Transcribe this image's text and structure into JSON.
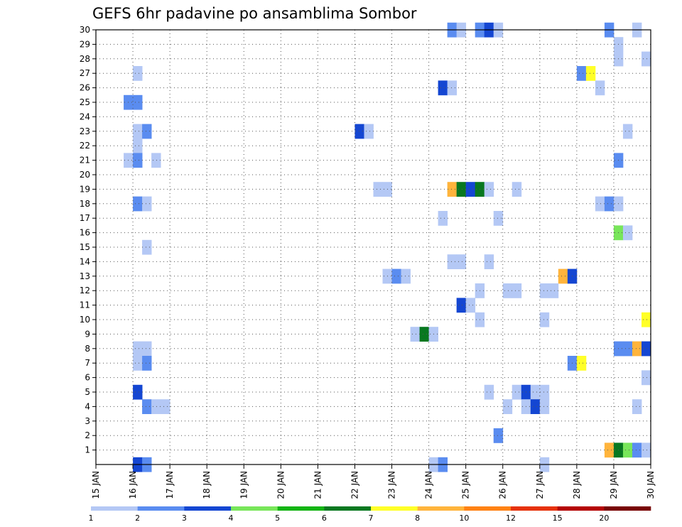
{
  "chart_data": {
    "type": "heatmap",
    "title": "GEFS 6hr padavine po ansamblima Sombor",
    "xlabel": "",
    "ylabel": "",
    "x_ticks": [
      "15 JAN",
      "16 JAN",
      "17 JAN",
      "18 JAN",
      "19 JAN",
      "20 JAN",
      "21 JAN",
      "22 JAN",
      "23 JAN",
      "24 JAN",
      "25 JAN",
      "26 JAN",
      "27 JAN",
      "28 JAN",
      "29 JAN",
      "30 JAN"
    ],
    "y_ticks": [
      "1",
      "2",
      "3",
      "4",
      "5",
      "6",
      "7",
      "8",
      "9",
      "10",
      "11",
      "12",
      "13",
      "14",
      "15",
      "16",
      "17",
      "18",
      "19",
      "20",
      "21",
      "22",
      "23",
      "24",
      "25",
      "26",
      "27",
      "28",
      "29",
      "30"
    ],
    "x_range_days": [
      15,
      30
    ],
    "y_range": [
      0,
      30
    ],
    "grid": true,
    "colorbar": {
      "levels": [
        "1",
        "2",
        "3",
        "4",
        "5",
        "6",
        "7",
        "8",
        "10",
        "12",
        "15",
        "20"
      ],
      "colors": [
        "#b4c8f5",
        "#5a8cf0",
        "#1446d2",
        "#78e65a",
        "#14b414",
        "#087820",
        "#ffff28",
        "#ffb43c",
        "#ff8214",
        "#e6320a",
        "#b40000",
        "#780000"
      ]
    },
    "series_note": "cells: [member, start_day, class]; start_day = day of January at start of 6-hour interval; class = colorbar bin index (0 = 1-2 mm)",
    "cells": [
      [
        30,
        24.5,
        1
      ],
      [
        30,
        24.75,
        0
      ],
      [
        30,
        25.25,
        1
      ],
      [
        30,
        25.5,
        2
      ],
      [
        30,
        25.75,
        0
      ],
      [
        30,
        28.75,
        1
      ],
      [
        30,
        29.5,
        0
      ],
      [
        29,
        29.0,
        0
      ],
      [
        28,
        29.0,
        0
      ],
      [
        28,
        29.75,
        0
      ],
      [
        27,
        16.0,
        0
      ],
      [
        27,
        28.0,
        1
      ],
      [
        27,
        28.25,
        6
      ],
      [
        26,
        24.25,
        2
      ],
      [
        26,
        24.5,
        0
      ],
      [
        26,
        28.5,
        0
      ],
      [
        25,
        15.75,
        1
      ],
      [
        25,
        16.0,
        1
      ],
      [
        23,
        16.0,
        0
      ],
      [
        23,
        16.25,
        1
      ],
      [
        23,
        22.0,
        2
      ],
      [
        23,
        22.25,
        0
      ],
      [
        23,
        29.25,
        0
      ],
      [
        22,
        16.0,
        0
      ],
      [
        21,
        15.75,
        0
      ],
      [
        21,
        16.0,
        1
      ],
      [
        21,
        16.5,
        0
      ],
      [
        21,
        29.0,
        1
      ],
      [
        19,
        22.5,
        0
      ],
      [
        19,
        22.75,
        0
      ],
      [
        19,
        24.5,
        7
      ],
      [
        19,
        24.75,
        5
      ],
      [
        19,
        25.0,
        2
      ],
      [
        19,
        25.25,
        5
      ],
      [
        19,
        25.5,
        0
      ],
      [
        19,
        26.25,
        0
      ],
      [
        18,
        16.0,
        1
      ],
      [
        18,
        16.25,
        0
      ],
      [
        18,
        28.5,
        0
      ],
      [
        18,
        28.75,
        1
      ],
      [
        18,
        29.0,
        0
      ],
      [
        17,
        24.25,
        0
      ],
      [
        17,
        25.75,
        0
      ],
      [
        16,
        29.0,
        3
      ],
      [
        16,
        29.25,
        0
      ],
      [
        15,
        16.25,
        0
      ],
      [
        14,
        24.5,
        0
      ],
      [
        14,
        24.75,
        0
      ],
      [
        14,
        25.5,
        0
      ],
      [
        13,
        22.75,
        0
      ],
      [
        13,
        23.0,
        1
      ],
      [
        13,
        23.25,
        0
      ],
      [
        13,
        27.5,
        7
      ],
      [
        13,
        27.75,
        2
      ],
      [
        12,
        25.25,
        0
      ],
      [
        12,
        26.0,
        0
      ],
      [
        12,
        26.25,
        0
      ],
      [
        12,
        27.0,
        0
      ],
      [
        12,
        27.25,
        0
      ],
      [
        11,
        24.75,
        2
      ],
      [
        11,
        25.0,
        0
      ],
      [
        10,
        25.25,
        0
      ],
      [
        10,
        27.0,
        0
      ],
      [
        10,
        29.75,
        6
      ],
      [
        9,
        23.5,
        0
      ],
      [
        9,
        23.75,
        5
      ],
      [
        9,
        24.0,
        0
      ],
      [
        8,
        16.0,
        0
      ],
      [
        8,
        16.25,
        0
      ],
      [
        8,
        29.0,
        1
      ],
      [
        8,
        29.25,
        1
      ],
      [
        8,
        29.5,
        7
      ],
      [
        8,
        29.75,
        2
      ],
      [
        7,
        16.0,
        0
      ],
      [
        7,
        16.25,
        1
      ],
      [
        7,
        27.75,
        1
      ],
      [
        7,
        28.0,
        6
      ],
      [
        6,
        29.75,
        0
      ],
      [
        5,
        16.0,
        2
      ],
      [
        5,
        25.5,
        0
      ],
      [
        5,
        26.25,
        0
      ],
      [
        5,
        26.5,
        2
      ],
      [
        5,
        26.75,
        0
      ],
      [
        5,
        27.0,
        0
      ],
      [
        4,
        16.25,
        1
      ],
      [
        4,
        16.5,
        0
      ],
      [
        4,
        16.75,
        0
      ],
      [
        4,
        26.0,
        0
      ],
      [
        4,
        26.5,
        0
      ],
      [
        4,
        26.75,
        2
      ],
      [
        4,
        27.0,
        0
      ],
      [
        4,
        29.5,
        0
      ],
      [
        2,
        25.75,
        1
      ],
      [
        1,
        28.75,
        7
      ],
      [
        1,
        29.0,
        5
      ],
      [
        1,
        29.25,
        3
      ],
      [
        1,
        29.5,
        1
      ],
      [
        1,
        29.75,
        0
      ],
      [
        0,
        16.0,
        2
      ],
      [
        0,
        16.25,
        1
      ],
      [
        0,
        24.0,
        0
      ],
      [
        0,
        24.25,
        1
      ],
      [
        0,
        27.0,
        0
      ]
    ]
  }
}
